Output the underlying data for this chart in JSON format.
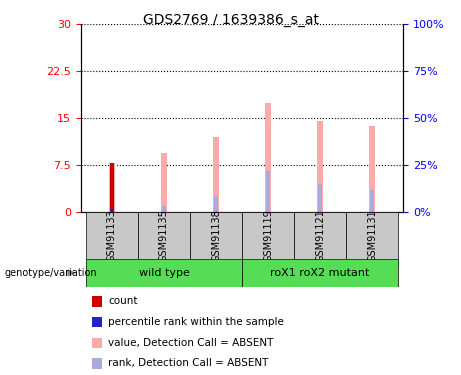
{
  "title": "GDS2769 / 1639386_s_at",
  "samples": [
    "GSM91133",
    "GSM91135",
    "GSM91138",
    "GSM91119",
    "GSM91121",
    "GSM91131"
  ],
  "groups": [
    {
      "label": "wild type",
      "indices": [
        0,
        1,
        2
      ],
      "color": "#55dd55"
    },
    {
      "label": "roX1 roX2 mutant",
      "indices": [
        3,
        4,
        5
      ],
      "color": "#55dd55"
    }
  ],
  "value_absent": [
    7.8,
    9.5,
    12.0,
    17.5,
    14.5,
    13.8
  ],
  "rank_absent": [
    0.85,
    0.9,
    2.5,
    6.5,
    4.5,
    3.5
  ],
  "count_val": 7.8,
  "percentile_val": 0.5,
  "ylim_left": [
    0,
    30
  ],
  "ylim_right": [
    0,
    100
  ],
  "yticks_left": [
    0,
    7.5,
    15,
    22.5,
    30
  ],
  "yticks_right": [
    0,
    25,
    50,
    75,
    100
  ],
  "color_count": "#cc0000",
  "color_percentile": "#2222cc",
  "color_value_absent": "#ffaaaa",
  "color_rank_absent": "#aaaadd",
  "bar_width": 0.12,
  "bg_label_area": "#c8c8c8",
  "legend_items": [
    {
      "color": "#cc0000",
      "label": "count"
    },
    {
      "color": "#2222cc",
      "label": "percentile rank within the sample"
    },
    {
      "color": "#ffaaaa",
      "label": "value, Detection Call = ABSENT"
    },
    {
      "color": "#aaaadd",
      "label": "rank, Detection Call = ABSENT"
    }
  ]
}
